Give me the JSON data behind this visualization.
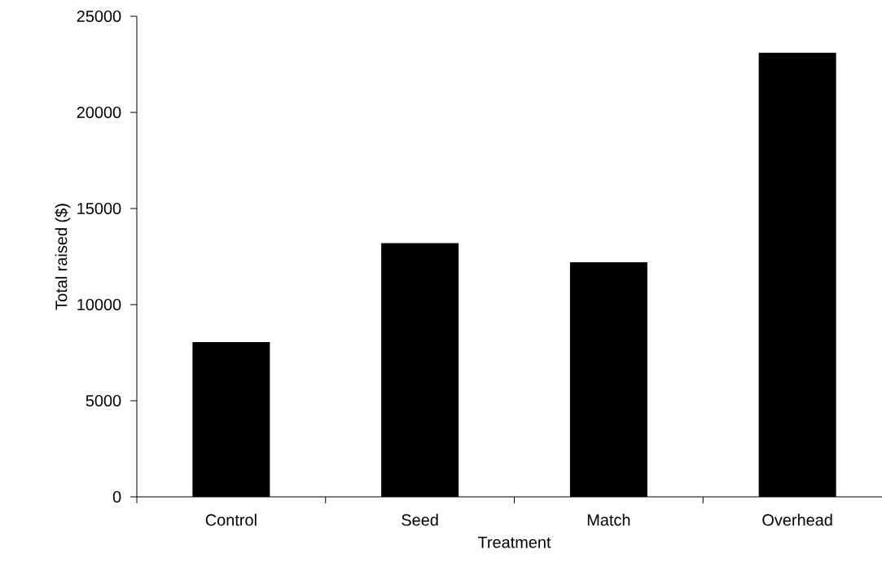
{
  "chart_data": {
    "type": "bar",
    "xlabel": "Treatment",
    "ylabel": "Total raised ($)",
    "categories": [
      "Control",
      "Seed",
      "Match",
      "Overhead"
    ],
    "values": [
      8050,
      13200,
      12200,
      23100
    ],
    "color": "#000000",
    "ylim": [
      0,
      25000
    ],
    "yticks": [
      0,
      5000,
      10000,
      15000,
      20000,
      25000
    ],
    "grid": false
  }
}
